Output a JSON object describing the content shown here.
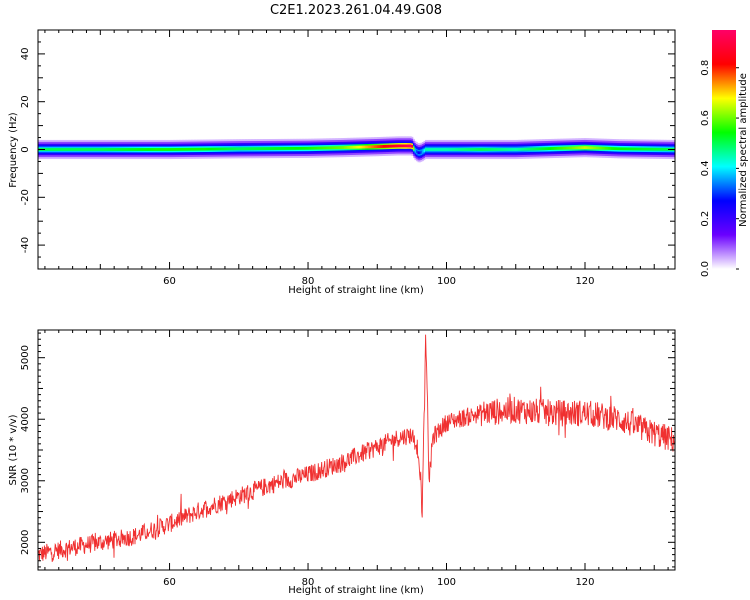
{
  "figure": {
    "title": "C2E1.2023.261.04.49.G08"
  },
  "chart_data": [
    {
      "type": "heatmap",
      "xlabel": "Height of straight line (km)",
      "ylabel": "Frequency (Hz)",
      "xlim": [
        41,
        133
      ],
      "ylim": [
        -50,
        50
      ],
      "xticks": [
        60,
        80,
        100,
        120
      ],
      "xtick_labels": [
        "60",
        "80",
        "100",
        "120"
      ],
      "yticks": [
        -40,
        -20,
        0,
        20,
        40
      ],
      "ytick_labels": [
        "-40",
        "-20",
        "0",
        "20",
        "40"
      ],
      "band": {
        "center_hz": [
          [
            41,
            0.0
          ],
          [
            50,
            0.0
          ],
          [
            60,
            0.0
          ],
          [
            70,
            0.3
          ],
          [
            80,
            0.5
          ],
          [
            85,
            0.8
          ],
          [
            90,
            1.2
          ],
          [
            93,
            1.5
          ],
          [
            95,
            1.5
          ],
          [
            95.5,
            -0.5
          ],
          [
            96,
            -1.5
          ],
          [
            96.5,
            -1.0
          ],
          [
            97,
            0.0
          ],
          [
            100,
            0.0
          ],
          [
            110,
            0.0
          ],
          [
            120,
            0.8
          ],
          [
            125,
            0.3
          ],
          [
            133,
            0.0
          ]
        ],
        "peak_amplitude": [
          [
            41,
            0.5
          ],
          [
            50,
            0.5
          ],
          [
            58,
            0.55
          ],
          [
            65,
            0.55
          ],
          [
            70,
            0.5
          ],
          [
            80,
            0.55
          ],
          [
            85,
            0.6
          ],
          [
            88,
            0.7
          ],
          [
            90,
            0.78
          ],
          [
            92,
            0.85
          ],
          [
            94,
            0.9
          ],
          [
            95,
            0.95
          ],
          [
            95.5,
            0.35
          ],
          [
            96,
            0.25
          ],
          [
            96.5,
            0.35
          ],
          [
            97,
            0.45
          ],
          [
            100,
            0.45
          ],
          [
            105,
            0.5
          ],
          [
            110,
            0.45
          ],
          [
            118,
            0.6
          ],
          [
            120,
            0.65
          ],
          [
            124,
            0.55
          ],
          [
            133,
            0.5
          ]
        ]
      },
      "colorbar": {
        "label": "Normalized spectral amplitude",
        "range": [
          0.0,
          0.95
        ],
        "ticks": [
          0.0,
          0.2,
          0.4,
          0.6,
          0.8
        ],
        "tick_labels": [
          "0.0",
          "0.2",
          "0.4",
          "0.6",
          "0.8"
        ],
        "colormap": [
          "#ffffff",
          "#6a00ff",
          "#0000ff",
          "#00ffff",
          "#00ff00",
          "#ffff00",
          "#ff0000",
          "#ff0066"
        ]
      },
      "grid": false
    },
    {
      "type": "line",
      "xlabel": "Height of straight line (km)",
      "ylabel": "SNR (10 * v/v)",
      "xlim": [
        41,
        133
      ],
      "ylim": [
        1550,
        5450
      ],
      "xticks": [
        60,
        80,
        100,
        120
      ],
      "xtick_labels": [
        "60",
        "80",
        "100",
        "120"
      ],
      "yticks": [
        2000,
        3000,
        4000,
        5000
      ],
      "ytick_labels": [
        "2000",
        "3000",
        "4000",
        "5000"
      ],
      "series": [
        {
          "color": "#f03030",
          "x": [
            41,
            45,
            50,
            55,
            60,
            65,
            70,
            75,
            80,
            85,
            90,
            93,
            95,
            96,
            96.5,
            97,
            97.5,
            98,
            100,
            105,
            110,
            115,
            120,
            125,
            128,
            133
          ],
          "y": [
            1800,
            1900,
            2000,
            2100,
            2300,
            2550,
            2750,
            2950,
            3100,
            3300,
            3550,
            3700,
            3750,
            3500,
            2500,
            5300,
            3000,
            3700,
            3950,
            4100,
            4150,
            4100,
            4100,
            4000,
            3850,
            3650
          ]
        }
      ],
      "grid": false
    }
  ]
}
